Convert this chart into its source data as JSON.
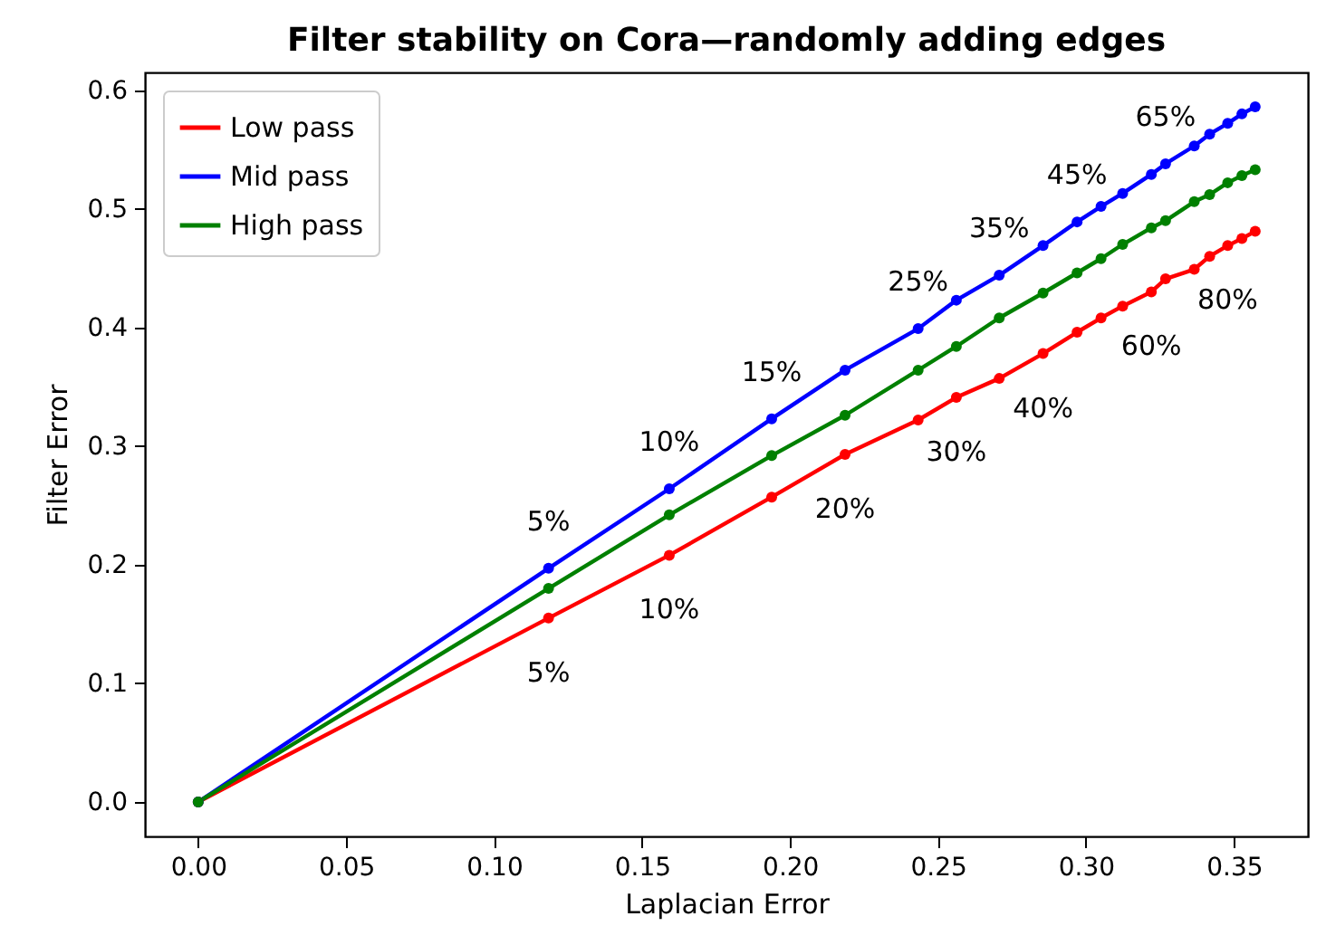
{
  "chart_data": {
    "type": "line",
    "title": "Filter stability on Cora—randomly adding edges",
    "xlabel": "Laplacian Error",
    "ylabel": "Filter Error",
    "x": [
      0,
      0.1184,
      0.1592,
      0.1938,
      0.2186,
      0.2433,
      0.2562,
      0.2707,
      0.2855,
      0.297,
      0.3051,
      0.3124,
      0.3221,
      0.3269,
      0.3366,
      0.3418,
      0.3479,
      0.3527,
      0.3572
    ],
    "series": [
      {
        "name": "Low pass",
        "color": "#ff0000",
        "values": [
          0,
          0.155,
          0.208,
          0.257,
          0.293,
          0.322,
          0.341,
          0.357,
          0.378,
          0.396,
          0.408,
          0.418,
          0.43,
          0.441,
          0.449,
          0.46,
          0.469,
          0.475,
          0.481
        ]
      },
      {
        "name": "Mid pass",
        "color": "#0000ff",
        "values": [
          0,
          0.197,
          0.264,
          0.323,
          0.364,
          0.399,
          0.423,
          0.444,
          0.469,
          0.489,
          0.502,
          0.513,
          0.529,
          0.538,
          0.553,
          0.563,
          0.572,
          0.58,
          0.586
        ]
      },
      {
        "name": "High pass",
        "color": "#008000",
        "values": [
          0,
          0.18,
          0.242,
          0.292,
          0.326,
          0.364,
          0.384,
          0.408,
          0.429,
          0.446,
          0.458,
          0.47,
          0.484,
          0.49,
          0.506,
          0.512,
          0.522,
          0.528,
          0.533
        ]
      }
    ],
    "xlim": [
      -0.018,
      0.375
    ],
    "ylim": [
      -0.029,
      0.615
    ],
    "xticks": [
      {
        "value": 0,
        "label": "0.00"
      },
      0.05,
      {
        "value": 0.1,
        "label": "0.10"
      },
      0.15,
      {
        "value": 0.2,
        "label": "0.20"
      },
      0.25,
      {
        "value": 0.3,
        "label": "0.30"
      },
      0.35
    ],
    "yticks": [
      {
        "value": 0,
        "label": "0.0"
      },
      0.1,
      0.2,
      0.3,
      0.4,
      0.5,
      0.6
    ],
    "grid": false,
    "legend": "top left",
    "marker": "circle",
    "line_style": "solid",
    "annotations": [
      {
        "text": "5%",
        "x": 0.1184,
        "y": 0.197
      },
      {
        "text": "10%",
        "x": 0.1592,
        "y": 0.264
      },
      {
        "text": "15%",
        "x": 0.1938,
        "y": 0.323
      },
      {
        "text": "25%",
        "x": 0.2433,
        "y": 0.399
      },
      {
        "text": "35%",
        "x": 0.2707,
        "y": 0.444
      },
      {
        "text": "45%",
        "x": 0.297,
        "y": 0.489
      },
      {
        "text": "65%",
        "x": 0.3269,
        "y": 0.538
      },
      {
        "text": "5%",
        "x": 0.1184,
        "y": 0.155
      },
      {
        "text": "10%",
        "x": 0.1592,
        "y": 0.208
      },
      {
        "text": "20%",
        "x": 0.2186,
        "y": 0.293
      },
      {
        "text": "30%",
        "x": 0.2562,
        "y": 0.341
      },
      {
        "text": "40%",
        "x": 0.2855,
        "y": 0.378
      },
      {
        "text": "60%",
        "x": 0.3221,
        "y": 0.43
      },
      {
        "text": "80%",
        "x": 0.3479,
        "y": 0.469
      }
    ]
  }
}
